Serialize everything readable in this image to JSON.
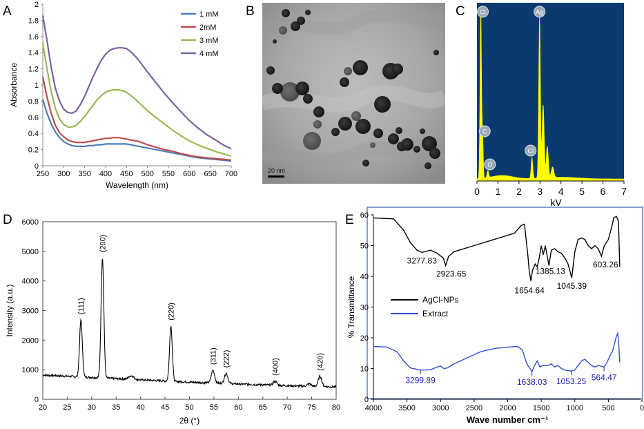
{
  "panels": {
    "A": "A",
    "B": "B",
    "C": "C",
    "D": "D",
    "E": "E"
  },
  "colors": {
    "s1mM": "#4a7ebb",
    "s2mM": "#be4b48",
    "s3mM": "#98b954",
    "s4mM": "#7d60a0",
    "eds_bg": "#0b3a6e",
    "eds_peak": "#ffff00",
    "ftir_np": "#000000",
    "ftir_extract": "#2f4fcf",
    "ftir_label_blue": "#2020c0"
  },
  "tem": {
    "scale_label": "20 nm"
  },
  "eds_labels": [
    "Cl",
    "Ag",
    "C",
    "O",
    "Cl"
  ],
  "chart_data": [
    {
      "id": "A",
      "type": "line",
      "xlabel": "Wavelength (nm)",
      "ylabel": "Absorbance",
      "xlim": [
        250,
        700
      ],
      "ylim": [
        0,
        2
      ],
      "xticks": [
        "250",
        "300",
        "350",
        "400",
        "450",
        "500",
        "550",
        "600",
        "650",
        "700"
      ],
      "yticks": [
        "0",
        "0.2",
        "0.4",
        "0.6",
        "0.8",
        "1",
        "1.2",
        "1.4",
        "1.6",
        "1.8",
        "2"
      ],
      "legend_position": "top-right",
      "x": [
        250,
        260,
        270,
        280,
        290,
        300,
        310,
        320,
        330,
        340,
        350,
        360,
        370,
        380,
        390,
        400,
        410,
        420,
        430,
        440,
        450,
        460,
        470,
        480,
        490,
        500,
        520,
        540,
        560,
        580,
        600,
        620,
        640,
        660,
        680,
        700
      ],
      "series": [
        {
          "name": "1 mM",
          "color": "#4a7ebb",
          "values": [
            0.82,
            0.65,
            0.52,
            0.42,
            0.35,
            0.3,
            0.27,
            0.25,
            0.24,
            0.24,
            0.24,
            0.25,
            0.25,
            0.26,
            0.26,
            0.27,
            0.27,
            0.27,
            0.27,
            0.27,
            0.27,
            0.26,
            0.25,
            0.24,
            0.23,
            0.22,
            0.2,
            0.18,
            0.16,
            0.14,
            0.12,
            0.1,
            0.09,
            0.08,
            0.07,
            0.06
          ]
        },
        {
          "name": "2mM",
          "color": "#be4b48",
          "values": [
            1.1,
            0.85,
            0.65,
            0.5,
            0.41,
            0.36,
            0.32,
            0.3,
            0.29,
            0.29,
            0.29,
            0.3,
            0.31,
            0.32,
            0.33,
            0.34,
            0.34,
            0.35,
            0.35,
            0.34,
            0.33,
            0.32,
            0.31,
            0.3,
            0.28,
            0.26,
            0.23,
            0.2,
            0.18,
            0.15,
            0.13,
            0.11,
            0.1,
            0.09,
            0.08,
            0.07
          ]
        },
        {
          "name": "3 mM",
          "color": "#98b954",
          "values": [
            1.52,
            1.2,
            0.92,
            0.71,
            0.58,
            0.51,
            0.48,
            0.48,
            0.5,
            0.55,
            0.61,
            0.68,
            0.75,
            0.82,
            0.87,
            0.91,
            0.93,
            0.94,
            0.94,
            0.93,
            0.91,
            0.87,
            0.83,
            0.78,
            0.73,
            0.68,
            0.6,
            0.52,
            0.44,
            0.37,
            0.31,
            0.26,
            0.22,
            0.18,
            0.15,
            0.12
          ]
        },
        {
          "name": "4 mM",
          "color": "#7d60a0",
          "values": [
            1.86,
            1.55,
            1.22,
            0.96,
            0.8,
            0.7,
            0.66,
            0.65,
            0.68,
            0.76,
            0.86,
            0.98,
            1.1,
            1.21,
            1.31,
            1.38,
            1.43,
            1.45,
            1.46,
            1.46,
            1.45,
            1.41,
            1.36,
            1.3,
            1.23,
            1.16,
            1.03,
            0.9,
            0.78,
            0.67,
            0.56,
            0.47,
            0.39,
            0.33,
            0.26,
            0.21
          ]
        }
      ]
    },
    {
      "id": "C",
      "type": "area",
      "xlabel": "kV",
      "xlim": [
        0,
        7
      ],
      "xticks": [
        "0",
        "1",
        "2",
        "3",
        "4",
        "5",
        "6",
        "7"
      ],
      "peaks": [
        {
          "label": "Cl",
          "x": 0.18,
          "height": 1.0
        },
        {
          "label": "Ag",
          "x": 2.98,
          "height": 0.93
        },
        {
          "label": "C",
          "x": 0.27,
          "height": 0.25
        },
        {
          "label": "O",
          "x": 0.52,
          "height": 0.04
        },
        {
          "label": "Cl",
          "x": 2.62,
          "height": 0.12
        }
      ]
    },
    {
      "id": "D",
      "type": "line",
      "xlabel": "2θ (°)",
      "ylabel": "Intensity (a.u.)",
      "xlim": [
        20,
        80
      ],
      "ylim": [
        0,
        6000
      ],
      "xticks": [
        "20",
        "25",
        "30",
        "35",
        "40",
        "45",
        "50",
        "55",
        "60",
        "65",
        "70",
        "75",
        "80"
      ],
      "yticks": [
        "0",
        "1000",
        "2000",
        "3000",
        "4000",
        "5000",
        "6000"
      ],
      "baseline": [
        [
          20,
          820
        ],
        [
          25,
          780
        ],
        [
          27,
          760
        ],
        [
          30,
          740
        ],
        [
          35,
          700
        ],
        [
          40,
          660
        ],
        [
          45,
          620
        ],
        [
          50,
          580
        ],
        [
          55,
          550
        ],
        [
          60,
          520
        ],
        [
          65,
          490
        ],
        [
          70,
          460
        ],
        [
          75,
          440
        ],
        [
          80,
          420
        ]
      ],
      "peaks": [
        {
          "label": "(111)",
          "x": 27.8,
          "y": 2680
        },
        {
          "label": "(200)",
          "x": 32.2,
          "y": 4780
        },
        {
          "label": "(220)",
          "x": 46.2,
          "y": 2480
        },
        {
          "label": "(311)",
          "x": 54.8,
          "y": 980
        },
        {
          "label": "(222)",
          "x": 57.5,
          "y": 880
        },
        {
          "label": "(400)",
          "x": 67.5,
          "y": 610
        },
        {
          "label": "(420)",
          "x": 76.7,
          "y": 780
        }
      ]
    },
    {
      "id": "E",
      "type": "line",
      "xlabel": "Wave number cm⁻¹",
      "ylabel": "% Transmittance",
      "xlim": [
        4000,
        0
      ],
      "ylim": [
        0,
        60
      ],
      "xticks": [
        "4000",
        "3500",
        "3000",
        "2500",
        "2000",
        "1500",
        "1000",
        "500",
        "0"
      ],
      "yticks": [
        "0",
        "10",
        "20",
        "30",
        "40",
        "50",
        "60"
      ],
      "legend_position": "center-left",
      "series": [
        {
          "name": "AgCl-NPs",
          "color": "#000000",
          "points": [
            [
              4000,
              59
            ],
            [
              3700,
              58.7
            ],
            [
              3550,
              55
            ],
            [
              3450,
              51
            ],
            [
              3350,
              48.5
            ],
            [
              3277.83,
              47.8
            ],
            [
              3150,
              48.5
            ],
            [
              3050,
              47.5
            ],
            [
              2960,
              46
            ],
            [
              2923.65,
              43.5
            ],
            [
              2880,
              46.5
            ],
            [
              2800,
              48
            ],
            [
              2500,
              50
            ],
            [
              2200,
              52
            ],
            [
              1900,
              54
            ],
            [
              1800,
              56.5
            ],
            [
              1750,
              57
            ],
            [
              1700,
              47
            ],
            [
              1680,
              42
            ],
            [
              1654.64,
              38.5
            ],
            [
              1630,
              42
            ],
            [
              1590,
              44
            ],
            [
              1560,
              43
            ],
            [
              1530,
              46
            ],
            [
              1500,
              50
            ],
            [
              1470,
              47
            ],
            [
              1440,
              50
            ],
            [
              1385.13,
              43.5
            ],
            [
              1350,
              48.5
            ],
            [
              1300,
              49
            ],
            [
              1250,
              48
            ],
            [
              1200,
              47.5
            ],
            [
              1150,
              46
            ],
            [
              1100,
              44
            ],
            [
              1045.39,
              39.5
            ],
            [
              1000,
              48
            ],
            [
              950,
              52
            ],
            [
              900,
              52.5
            ],
            [
              850,
              52
            ],
            [
              800,
              50
            ],
            [
              750,
              49
            ],
            [
              700,
              50
            ],
            [
              650,
              49
            ],
            [
              603.26,
              46.5
            ],
            [
              560,
              50
            ],
            [
              500,
              52
            ],
            [
              450,
              56
            ],
            [
              420,
              59
            ],
            [
              380,
              59.5
            ],
            [
              350,
              58
            ],
            [
              330,
              43
            ]
          ],
          "labels": [
            {
              "text": "3277.83",
              "x": 3277.83
            },
            {
              "text": "2923.65",
              "x": 2923.65
            },
            {
              "text": "1654.64",
              "x": 1654.64
            },
            {
              "text": "1385.13",
              "x": 1385.13
            },
            {
              "text": "1045.39",
              "x": 1045.39
            },
            {
              "text": "603.26",
              "x": 603.26
            }
          ]
        },
        {
          "name": "Extract",
          "color": "#2f4fcf",
          "points": [
            [
              4000,
              17.2
            ],
            [
              3800,
              17
            ],
            [
              3650,
              15.5
            ],
            [
              3550,
              12.5
            ],
            [
              3450,
              10.2
            ],
            [
              3299.89,
              9.5
            ],
            [
              3150,
              9.6
            ],
            [
              3050,
              10.5
            ],
            [
              3000,
              10.8
            ],
            [
              2950,
              10
            ],
            [
              2900,
              10.2
            ],
            [
              2800,
              11.5
            ],
            [
              2600,
              13.5
            ],
            [
              2400,
              15.5
            ],
            [
              2200,
              16.5
            ],
            [
              2000,
              17
            ],
            [
              1850,
              17.2
            ],
            [
              1780,
              16
            ],
            [
              1730,
              12.5
            ],
            [
              1700,
              11
            ],
            [
              1680,
              10.5
            ],
            [
              1638.03,
              9
            ],
            [
              1600,
              11
            ],
            [
              1560,
              12.5
            ],
            [
              1520,
              10.5
            ],
            [
              1480,
              11
            ],
            [
              1400,
              11
            ],
            [
              1350,
              11.5
            ],
            [
              1300,
              10.5
            ],
            [
              1250,
              11
            ],
            [
              1200,
              10
            ],
            [
              1150,
              9.5
            ],
            [
              1100,
              9.3
            ],
            [
              1053.25,
              9.2
            ],
            [
              1000,
              9.5
            ],
            [
              950,
              11
            ],
            [
              900,
              12.5
            ],
            [
              850,
              13
            ],
            [
              800,
              12
            ],
            [
              750,
              11
            ],
            [
              700,
              10.5
            ],
            [
              650,
              11
            ],
            [
              564.47,
              10.5
            ],
            [
              520,
              12
            ],
            [
              480,
              14
            ],
            [
              440,
              15.5
            ],
            [
              410,
              18
            ],
            [
              380,
              20.5
            ],
            [
              360,
              21.5
            ],
            [
              345,
              18
            ],
            [
              330,
              12
            ]
          ],
          "labels": [
            {
              "text": "3299.89",
              "x": 3299.89
            },
            {
              "text": "1638.03",
              "x": 1638.03
            },
            {
              "text": "1053.25",
              "x": 1053.25
            },
            {
              "text": "564.47",
              "x": 564.47
            }
          ]
        }
      ]
    }
  ]
}
